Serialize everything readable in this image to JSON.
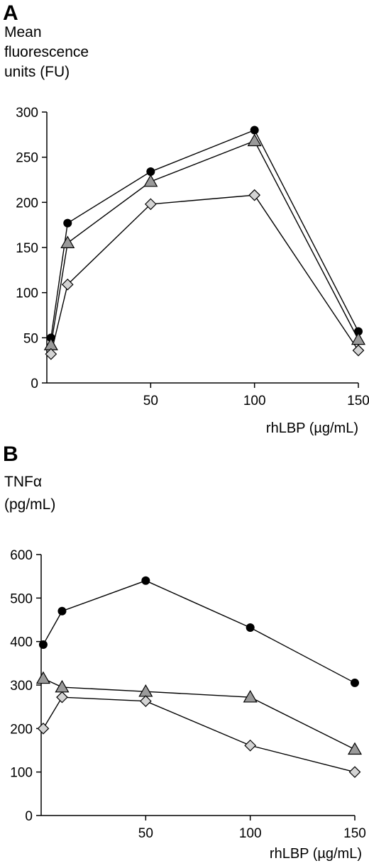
{
  "chart_data": [
    {
      "panel": "A",
      "type": "line",
      "ylabel": [
        "Mean",
        "fluorescence",
        "units (FU)"
      ],
      "xlabel": "rhLBP (µg/mL)",
      "xlim": [
        0,
        150
      ],
      "ylim": [
        0,
        300
      ],
      "xticks": [
        50,
        100,
        150
      ],
      "yticks": [
        0,
        50,
        100,
        150,
        200,
        250,
        300
      ],
      "x": [
        2,
        10,
        50,
        100,
        150
      ],
      "series": [
        {
          "marker": "circle",
          "color": "#000000",
          "values": [
            50,
            177,
            234,
            280,
            57
          ]
        },
        {
          "marker": "triangle",
          "color": "#9a9a9a",
          "values": [
            42,
            155,
            223,
            268,
            48
          ]
        },
        {
          "marker": "diamond",
          "color": "#d4d4d4",
          "values": [
            32,
            109,
            198,
            208,
            36
          ]
        }
      ],
      "grid": false
    },
    {
      "panel": "B",
      "type": "line",
      "ylabel": [
        "TNFα",
        "(pg/mL)"
      ],
      "xlabel": "rhLBP (µg/mL)",
      "xlim": [
        0,
        150
      ],
      "ylim": [
        0,
        600
      ],
      "xticks": [
        50,
        100,
        150
      ],
      "yticks": [
        0,
        100,
        200,
        300,
        400,
        500,
        600
      ],
      "x": [
        1,
        10,
        50,
        100,
        150
      ],
      "series": [
        {
          "marker": "circle",
          "color": "#000000",
          "values": [
            393,
            470,
            540,
            432,
            305
          ]
        },
        {
          "marker": "triangle",
          "color": "#9a9a9a",
          "values": [
            315,
            295,
            285,
            272,
            152
          ]
        },
        {
          "marker": "diamond",
          "color": "#d4d4d4",
          "values": [
            200,
            272,
            263,
            161,
            100
          ]
        }
      ],
      "grid": false
    }
  ]
}
